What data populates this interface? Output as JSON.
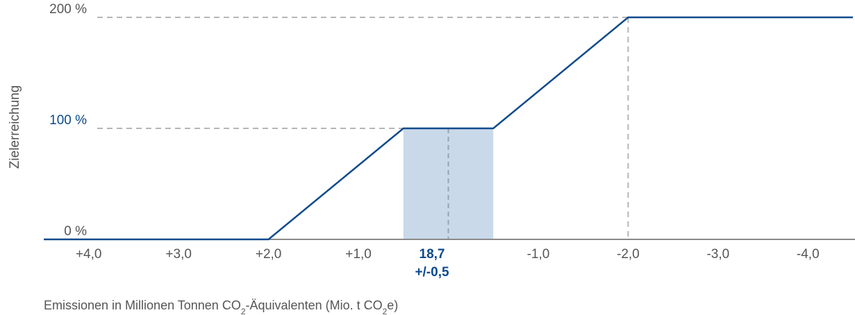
{
  "chart_data": {
    "type": "line",
    "title": "",
    "ylabel": "Zielerreichung",
    "xlabel": {
      "prefix": "Emissionen in Millionen Tonnen CO",
      "sub1": "2",
      "middle": "-Äquivalenten (Mio. t CO",
      "sub2": "2",
      "suffix": "e)"
    },
    "x_offsets_range": [
      4.5,
      -4.5
    ],
    "ylim": [
      0,
      200
    ],
    "x_ticks": [
      {
        "value": 4.0,
        "label": "+4,0"
      },
      {
        "value": 3.0,
        "label": "+3,0"
      },
      {
        "value": 2.0,
        "label": "+2,0"
      },
      {
        "value": 1.0,
        "label": "+1,0"
      },
      {
        "value": -1.0,
        "label": "-1,0"
      },
      {
        "value": -2.0,
        "label": "-2,0"
      },
      {
        "value": -3.0,
        "label": "-3,0"
      },
      {
        "value": -4.0,
        "label": "-4,0"
      }
    ],
    "y_ticks": [
      {
        "value": 0,
        "label": "0 %"
      },
      {
        "value": 100,
        "label": "100 %"
      },
      {
        "value": 200,
        "label": "200 %"
      }
    ],
    "target": {
      "value": "18,7",
      "tolerance": "+/-0,5",
      "band": [
        0.5,
        -0.5
      ],
      "color": "#0c4a8c"
    },
    "series": [
      {
        "x": [
          4.5,
          2.0,
          0.5,
          -0.5,
          -2.0,
          -4.5
        ],
        "y": [
          0,
          0,
          100,
          100,
          200,
          200
        ]
      }
    ],
    "colors": {
      "line": "#0c4a8c",
      "band": "#c9d9ea",
      "grid": "#b5b5b5",
      "axis": "#8a8a8a",
      "text": "#555555",
      "highlight_text": "#0c4a8c"
    }
  }
}
